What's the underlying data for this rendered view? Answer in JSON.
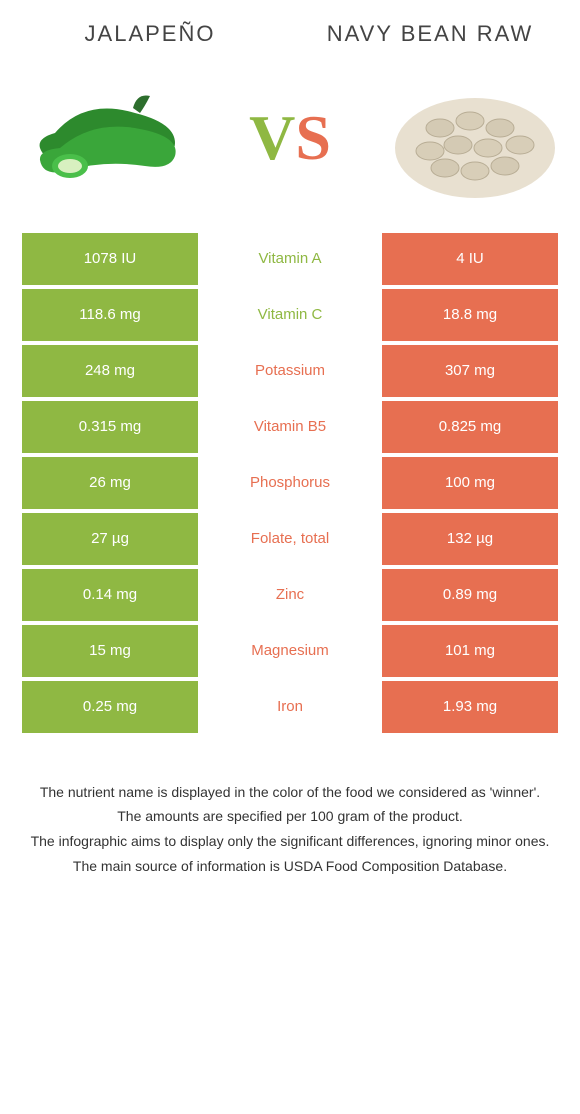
{
  "header": {
    "left_title": "JALAPEÑO",
    "right_title": "NAVY BEAN RAW"
  },
  "vs": {
    "v": "V",
    "s": "S"
  },
  "colors": {
    "green": "#8fb843",
    "orange": "#e76f51",
    "text": "#333333",
    "header_text": "#444444",
    "bg": "#ffffff"
  },
  "rows": [
    {
      "left": "1078 IU",
      "mid": "Vitamin A",
      "right": "4 IU",
      "winner": "green"
    },
    {
      "left": "118.6 mg",
      "mid": "Vitamin C",
      "right": "18.8 mg",
      "winner": "green"
    },
    {
      "left": "248 mg",
      "mid": "Potassium",
      "right": "307 mg",
      "winner": "orange"
    },
    {
      "left": "0.315 mg",
      "mid": "Vitamin B5",
      "right": "0.825 mg",
      "winner": "orange"
    },
    {
      "left": "26 mg",
      "mid": "Phosphorus",
      "right": "100 mg",
      "winner": "orange"
    },
    {
      "left": "27 µg",
      "mid": "Folate, total",
      "right": "132 µg",
      "winner": "orange"
    },
    {
      "left": "0.14 mg",
      "mid": "Zinc",
      "right": "0.89 mg",
      "winner": "orange"
    },
    {
      "left": "15 mg",
      "mid": "Magnesium",
      "right": "101 mg",
      "winner": "orange"
    },
    {
      "left": "0.25 mg",
      "mid": "Iron",
      "right": "1.93 mg",
      "winner": "orange"
    }
  ],
  "notes": [
    "The nutrient name is displayed in the color of the food we considered as 'winner'.",
    "The amounts are specified per 100 gram of the product.",
    "The infographic aims to display only the significant differences, ignoring minor ones.",
    "The main source of information is USDA Food Composition Database."
  ]
}
